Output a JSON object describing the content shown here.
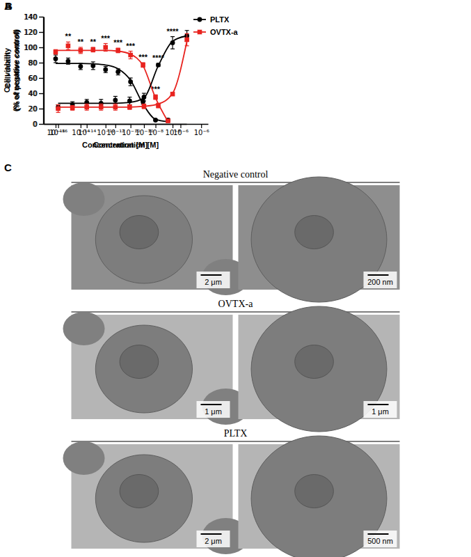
{
  "chart_data": [
    {
      "panel": "A",
      "type": "line",
      "log": "x",
      "grid": false,
      "legend": "right",
      "x_label": "Concentration [M]",
      "y_label": "Cell viability (% of negative control)",
      "x": [
        1e-16,
        1e-15,
        1e-14,
        1e-13,
        1e-12,
        1e-11,
        1e-10,
        1e-09,
        1e-08,
        1e-07
      ],
      "xlim": [
        1e-17,
        3e-06
      ],
      "xticks": [
        {
          "value": 1e-16,
          "label": "10⁻¹⁶"
        },
        {
          "value": 1e-14,
          "label": "10⁻¹⁴"
        },
        {
          "value": 1e-12,
          "label": "10⁻¹²"
        },
        {
          "value": 1e-10,
          "label": "10⁻¹⁰"
        },
        {
          "value": 1e-08,
          "label": "10⁻⁸"
        },
        {
          "value": 1e-06,
          "label": "10⁻⁶"
        }
      ],
      "ylim": [
        0,
        140
      ],
      "yticks": [
        0,
        20,
        40,
        60,
        80,
        100,
        120,
        140
      ],
      "series": [
        {
          "name": "PLTX",
          "color": "#000000",
          "marker": "circle",
          "values": [
            85,
            82,
            75,
            76,
            71,
            68,
            55,
            29,
            5,
            5
          ],
          "errors": [
            5,
            4,
            4,
            5,
            4,
            4,
            5,
            3,
            1,
            2
          ],
          "fit": [
            79,
            79,
            79,
            78.5,
            77,
            72,
            57,
            26,
            6,
            3
          ]
        },
        {
          "name": "OVTX-a",
          "color": "#e8231f",
          "marker": "square",
          "values": [
            94,
            102,
            96,
            97,
            100,
            96,
            90,
            77,
            35,
            4
          ],
          "errors": [
            3,
            5,
            4,
            3,
            5,
            3,
            5,
            3,
            3,
            1
          ],
          "fit": [
            96,
            96,
            96,
            96,
            96,
            95,
            91,
            76,
            34,
            3
          ]
        }
      ],
      "annotations": [
        {
          "x": 1e-15,
          "text": "**"
        },
        {
          "x": 1e-14,
          "text": "**"
        },
        {
          "x": 1e-13,
          "text": "**"
        },
        {
          "x": 1e-12,
          "text": "***"
        },
        {
          "x": 1e-11,
          "text": "***"
        },
        {
          "x": 1e-10,
          "text": "***"
        },
        {
          "x": 1e-09,
          "text": "***"
        },
        {
          "x": 1e-08,
          "text": "***"
        }
      ]
    },
    {
      "panel": "B",
      "type": "line",
      "log": "x",
      "grid": false,
      "x_label": "Concentration [M]",
      "y_label": "Cell death (% of positive control)",
      "x": [
        1e-16,
        1e-15,
        1e-14,
        1e-13,
        1e-12,
        1e-11,
        1e-10,
        1e-09,
        1e-08,
        1e-07
      ],
      "xlim": [
        1e-17,
        3e-06
      ],
      "xticks": [
        {
          "value": 1e-16,
          "label": "10⁻¹⁶"
        },
        {
          "value": 1e-14,
          "label": "10⁻¹⁴"
        },
        {
          "value": 1e-12,
          "label": "10⁻¹²"
        },
        {
          "value": 1e-10,
          "label": "10⁻¹⁰"
        },
        {
          "value": 1e-08,
          "label": "10⁻⁸"
        },
        {
          "value": 1e-06,
          "label": "10⁻⁶"
        }
      ],
      "ylim": [
        0,
        140
      ],
      "yticks": [
        0,
        20,
        40,
        60,
        80,
        100,
        120,
        140
      ],
      "series": [
        {
          "color": "#000000",
          "marker": "circle",
          "values": [
            22,
            25,
            28,
            27,
            31,
            30,
            35,
            77,
            106,
            115
          ],
          "errors": [
            3,
            4,
            4,
            5,
            5,
            5,
            5,
            2,
            8,
            7
          ],
          "fit": [
            27,
            27,
            27,
            27,
            27,
            28,
            34,
            76,
            108,
            115
          ]
        },
        {
          "color": "#e8231f",
          "marker": "square",
          "values": [
            20,
            21,
            22,
            22,
            22,
            22,
            23,
            24,
            39,
            110
          ],
          "errors": [
            5,
            3,
            4,
            4,
            4,
            3,
            3,
            3,
            2,
            8
          ],
          "fit": [
            22,
            22,
            22,
            22,
            22,
            22,
            23,
            26,
            40,
            108
          ]
        }
      ],
      "annotations": [
        {
          "x": 1e-09,
          "text": "****"
        },
        {
          "x": 1e-08,
          "text": "****"
        }
      ]
    }
  ],
  "figure": {
    "letter": "C",
    "groups": [
      {
        "title": "Negative control",
        "images": [
          {
            "scale_bar": "2 μm"
          },
          {
            "scale_bar": "200 nm"
          }
        ]
      },
      {
        "title": "OVTX-a",
        "images": [
          {
            "scale_bar": "1 μm"
          },
          {
            "scale_bar": "1 μm"
          }
        ]
      },
      {
        "title": "PLTX",
        "images": [
          {
            "scale_bar": "2 μm"
          },
          {
            "scale_bar": "500 nm"
          }
        ]
      }
    ]
  }
}
